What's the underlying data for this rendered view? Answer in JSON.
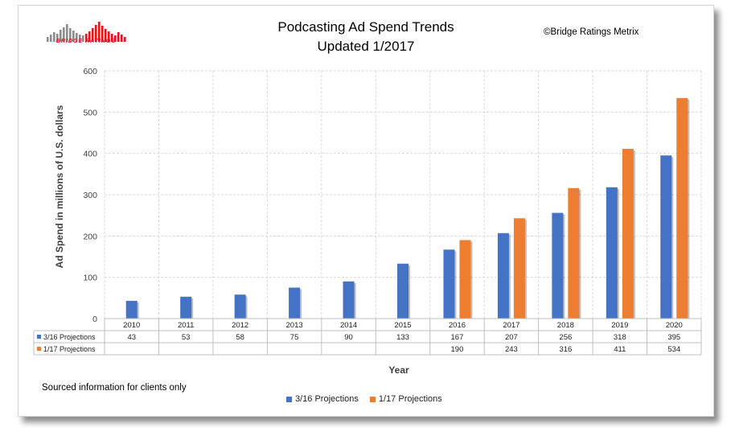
{
  "header": {
    "title_line1": "Podcasting Ad Spend Trends",
    "title_line2": "Updated 1/2017",
    "copyright": "©Bridge Ratings Metrix",
    "logo_text": "BRIDGE RATINGS"
  },
  "footer": {
    "sourced_note": "Sourced information for clients only"
  },
  "colors": {
    "series1": "#4472C4",
    "series2": "#ED7D31"
  },
  "chart_data": {
    "type": "bar",
    "title": "Podcasting Ad Spend Trends",
    "xlabel": "Year",
    "ylabel": "Ad Spend in millions of U.S. dollars",
    "ylim": [
      0,
      600
    ],
    "yticks": [
      0,
      100,
      200,
      300,
      400,
      500,
      600
    ],
    "grid": true,
    "legend_position": "bottom",
    "categories": [
      "2010",
      "2011",
      "2012",
      "2013",
      "2014",
      "2015",
      "2016",
      "2017",
      "2018",
      "2019",
      "2020"
    ],
    "series": [
      {
        "name": "3/16 Projections",
        "values": [
          43,
          53,
          58,
          75,
          90,
          133,
          167,
          207,
          256,
          318,
          395
        ]
      },
      {
        "name": "1/17 Projections",
        "values": [
          null,
          null,
          null,
          null,
          null,
          null,
          190,
          243,
          316,
          411,
          534
        ]
      }
    ],
    "data_table": true
  }
}
